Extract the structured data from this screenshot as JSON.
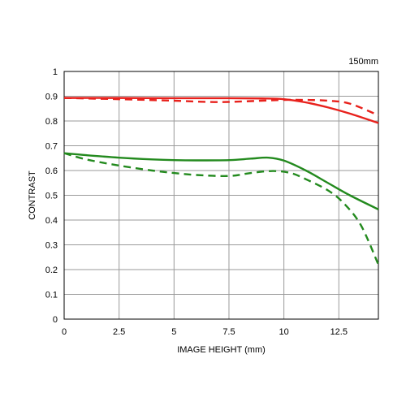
{
  "chart_data": {
    "type": "line",
    "title": "",
    "annotation": "150mm",
    "xlabel": "IMAGE HEIGHT (mm)",
    "ylabel": "CONTRAST",
    "xlim": [
      0,
      14.3
    ],
    "ylim": [
      0,
      1
    ],
    "xticks": [
      0,
      2.5,
      5,
      7.5,
      10,
      12.5
    ],
    "xtick_labels": [
      "0",
      "2.5",
      "5",
      "7.5",
      "10",
      "12.5"
    ],
    "yticks": [
      0,
      0.1,
      0.2,
      0.3,
      0.4,
      0.5,
      0.6,
      0.7,
      0.8,
      0.9,
      1
    ],
    "ytick_labels": [
      "0",
      "0.1",
      "0.2",
      "0.3",
      "0.4",
      "0.5",
      "0.6",
      "0.7",
      "0.8",
      "0.9",
      "1"
    ],
    "grid": true,
    "colors": {
      "red": "#e8211c",
      "green": "#238a1e",
      "grid": "#9a9a9a"
    },
    "series": [
      {
        "color": "red",
        "style": "solid",
        "x": [
          0,
          2.5,
          5,
          7.5,
          9,
          10,
          11,
          12,
          13,
          14.3
        ],
        "y": [
          0.893,
          0.893,
          0.892,
          0.892,
          0.891,
          0.888,
          0.875,
          0.855,
          0.83,
          0.792
        ]
      },
      {
        "color": "red",
        "style": "dashed",
        "x": [
          0,
          2.5,
          5,
          6.5,
          7.5,
          9,
          10,
          11,
          12,
          13,
          14.3
        ],
        "y": [
          0.893,
          0.888,
          0.882,
          0.877,
          0.877,
          0.882,
          0.885,
          0.885,
          0.882,
          0.87,
          0.823
        ]
      },
      {
        "color": "green",
        "style": "solid",
        "x": [
          0,
          1,
          2.5,
          4,
          5,
          6,
          7.5,
          8.5,
          9.3,
          10,
          11,
          12,
          13,
          14.3
        ],
        "y": [
          0.67,
          0.662,
          0.652,
          0.645,
          0.642,
          0.641,
          0.642,
          0.648,
          0.652,
          0.64,
          0.6,
          0.55,
          0.5,
          0.443
        ]
      },
      {
        "color": "green",
        "style": "dashed",
        "x": [
          0,
          1,
          2.5,
          4,
          5,
          6,
          7.5,
          8.5,
          9.5,
          10.3,
          11,
          12,
          12.7,
          13.5,
          14.3
        ],
        "y": [
          0.67,
          0.645,
          0.62,
          0.6,
          0.59,
          0.582,
          0.578,
          0.59,
          0.598,
          0.59,
          0.565,
          0.52,
          0.47,
          0.38,
          0.22
        ]
      }
    ]
  }
}
